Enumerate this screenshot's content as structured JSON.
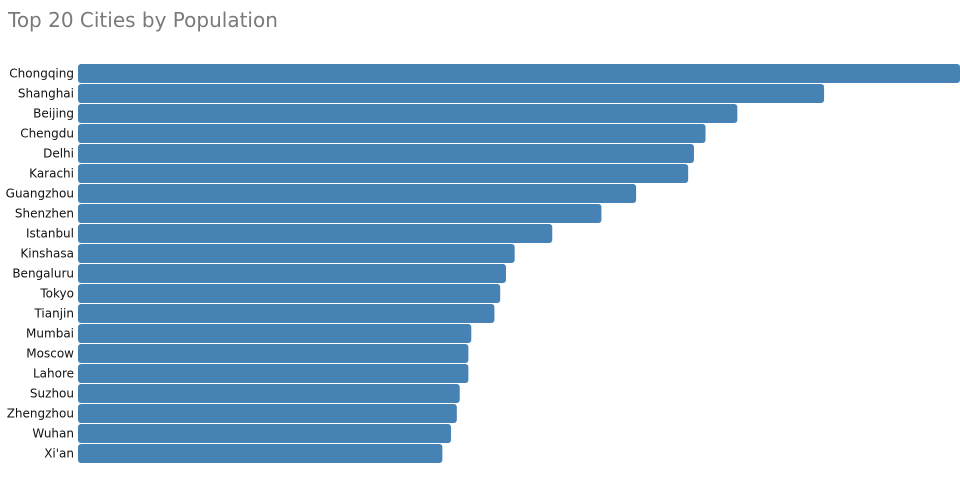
{
  "title": "Top 20 Cities by Population",
  "colors": {
    "bar": "#4682b4",
    "title": "#7a7a7a",
    "label": "#111111",
    "background": "#ffffff"
  },
  "chart_data": {
    "type": "bar",
    "orientation": "horizontal",
    "title": "Top 20 Cities by Population",
    "xlabel": "",
    "ylabel": "",
    "grid": false,
    "legend": "none",
    "categories": [
      "Chongqing",
      "Shanghai",
      "Beijing",
      "Chengdu",
      "Delhi",
      "Karachi",
      "Guangzhou",
      "Shenzhen",
      "Istanbul",
      "Kinshasa",
      "Bengaluru",
      "Tokyo",
      "Tianjin",
      "Mumbai",
      "Moscow",
      "Lahore",
      "Suzhou",
      "Zhengzhou",
      "Wuhan",
      "Xi'an"
    ],
    "values": [
      30.5,
      25.8,
      22.8,
      21.7,
      21.3,
      21.1,
      19.3,
      18.1,
      16.4,
      15.1,
      14.8,
      14.6,
      14.4,
      13.6,
      13.5,
      13.5,
      13.2,
      13.1,
      12.9,
      12.6
    ],
    "xlim": [
      0,
      30.5
    ]
  }
}
